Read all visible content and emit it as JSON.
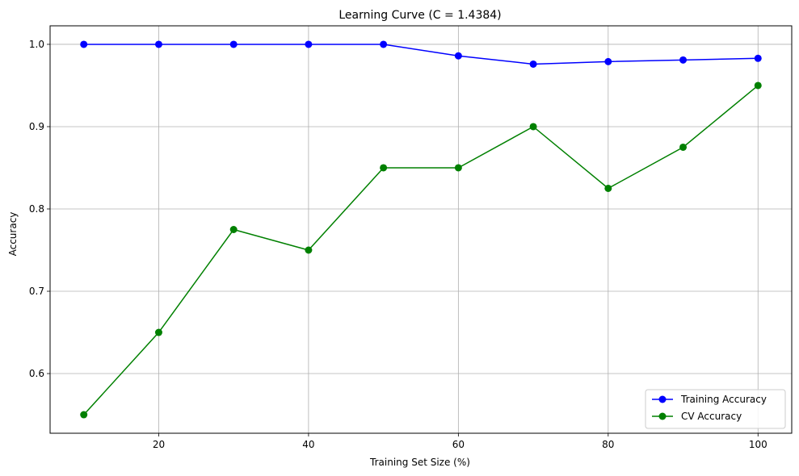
{
  "chart_data": {
    "type": "line",
    "title": "Learning Curve (C = 1.4384)",
    "xlabel": "Training Set Size (%)",
    "ylabel": "Accuracy",
    "xlim": [
      5.5,
      104.5
    ],
    "ylim": [
      0.5275,
      1.0225
    ],
    "xticks": [
      20,
      40,
      60,
      80,
      100
    ],
    "yticks": [
      0.6,
      0.7,
      0.8,
      0.9,
      1.0
    ],
    "ytick_labels": [
      "0.6",
      "0.7",
      "0.8",
      "0.9",
      "1.0"
    ],
    "grid": true,
    "legend_position": "lower-right",
    "x": [
      10,
      20,
      30,
      40,
      50,
      60,
      70,
      80,
      90,
      100
    ],
    "series": [
      {
        "name": "Training Accuracy",
        "color": "#0000ff",
        "marker": "circle",
        "values": [
          1.0,
          1.0,
          1.0,
          1.0,
          1.0,
          0.986,
          0.976,
          0.979,
          0.981,
          0.983
        ]
      },
      {
        "name": "CV Accuracy",
        "color": "#008000",
        "marker": "circle",
        "values": [
          0.55,
          0.65,
          0.775,
          0.75,
          0.85,
          0.85,
          0.9,
          0.825,
          0.875,
          0.95
        ]
      }
    ]
  }
}
